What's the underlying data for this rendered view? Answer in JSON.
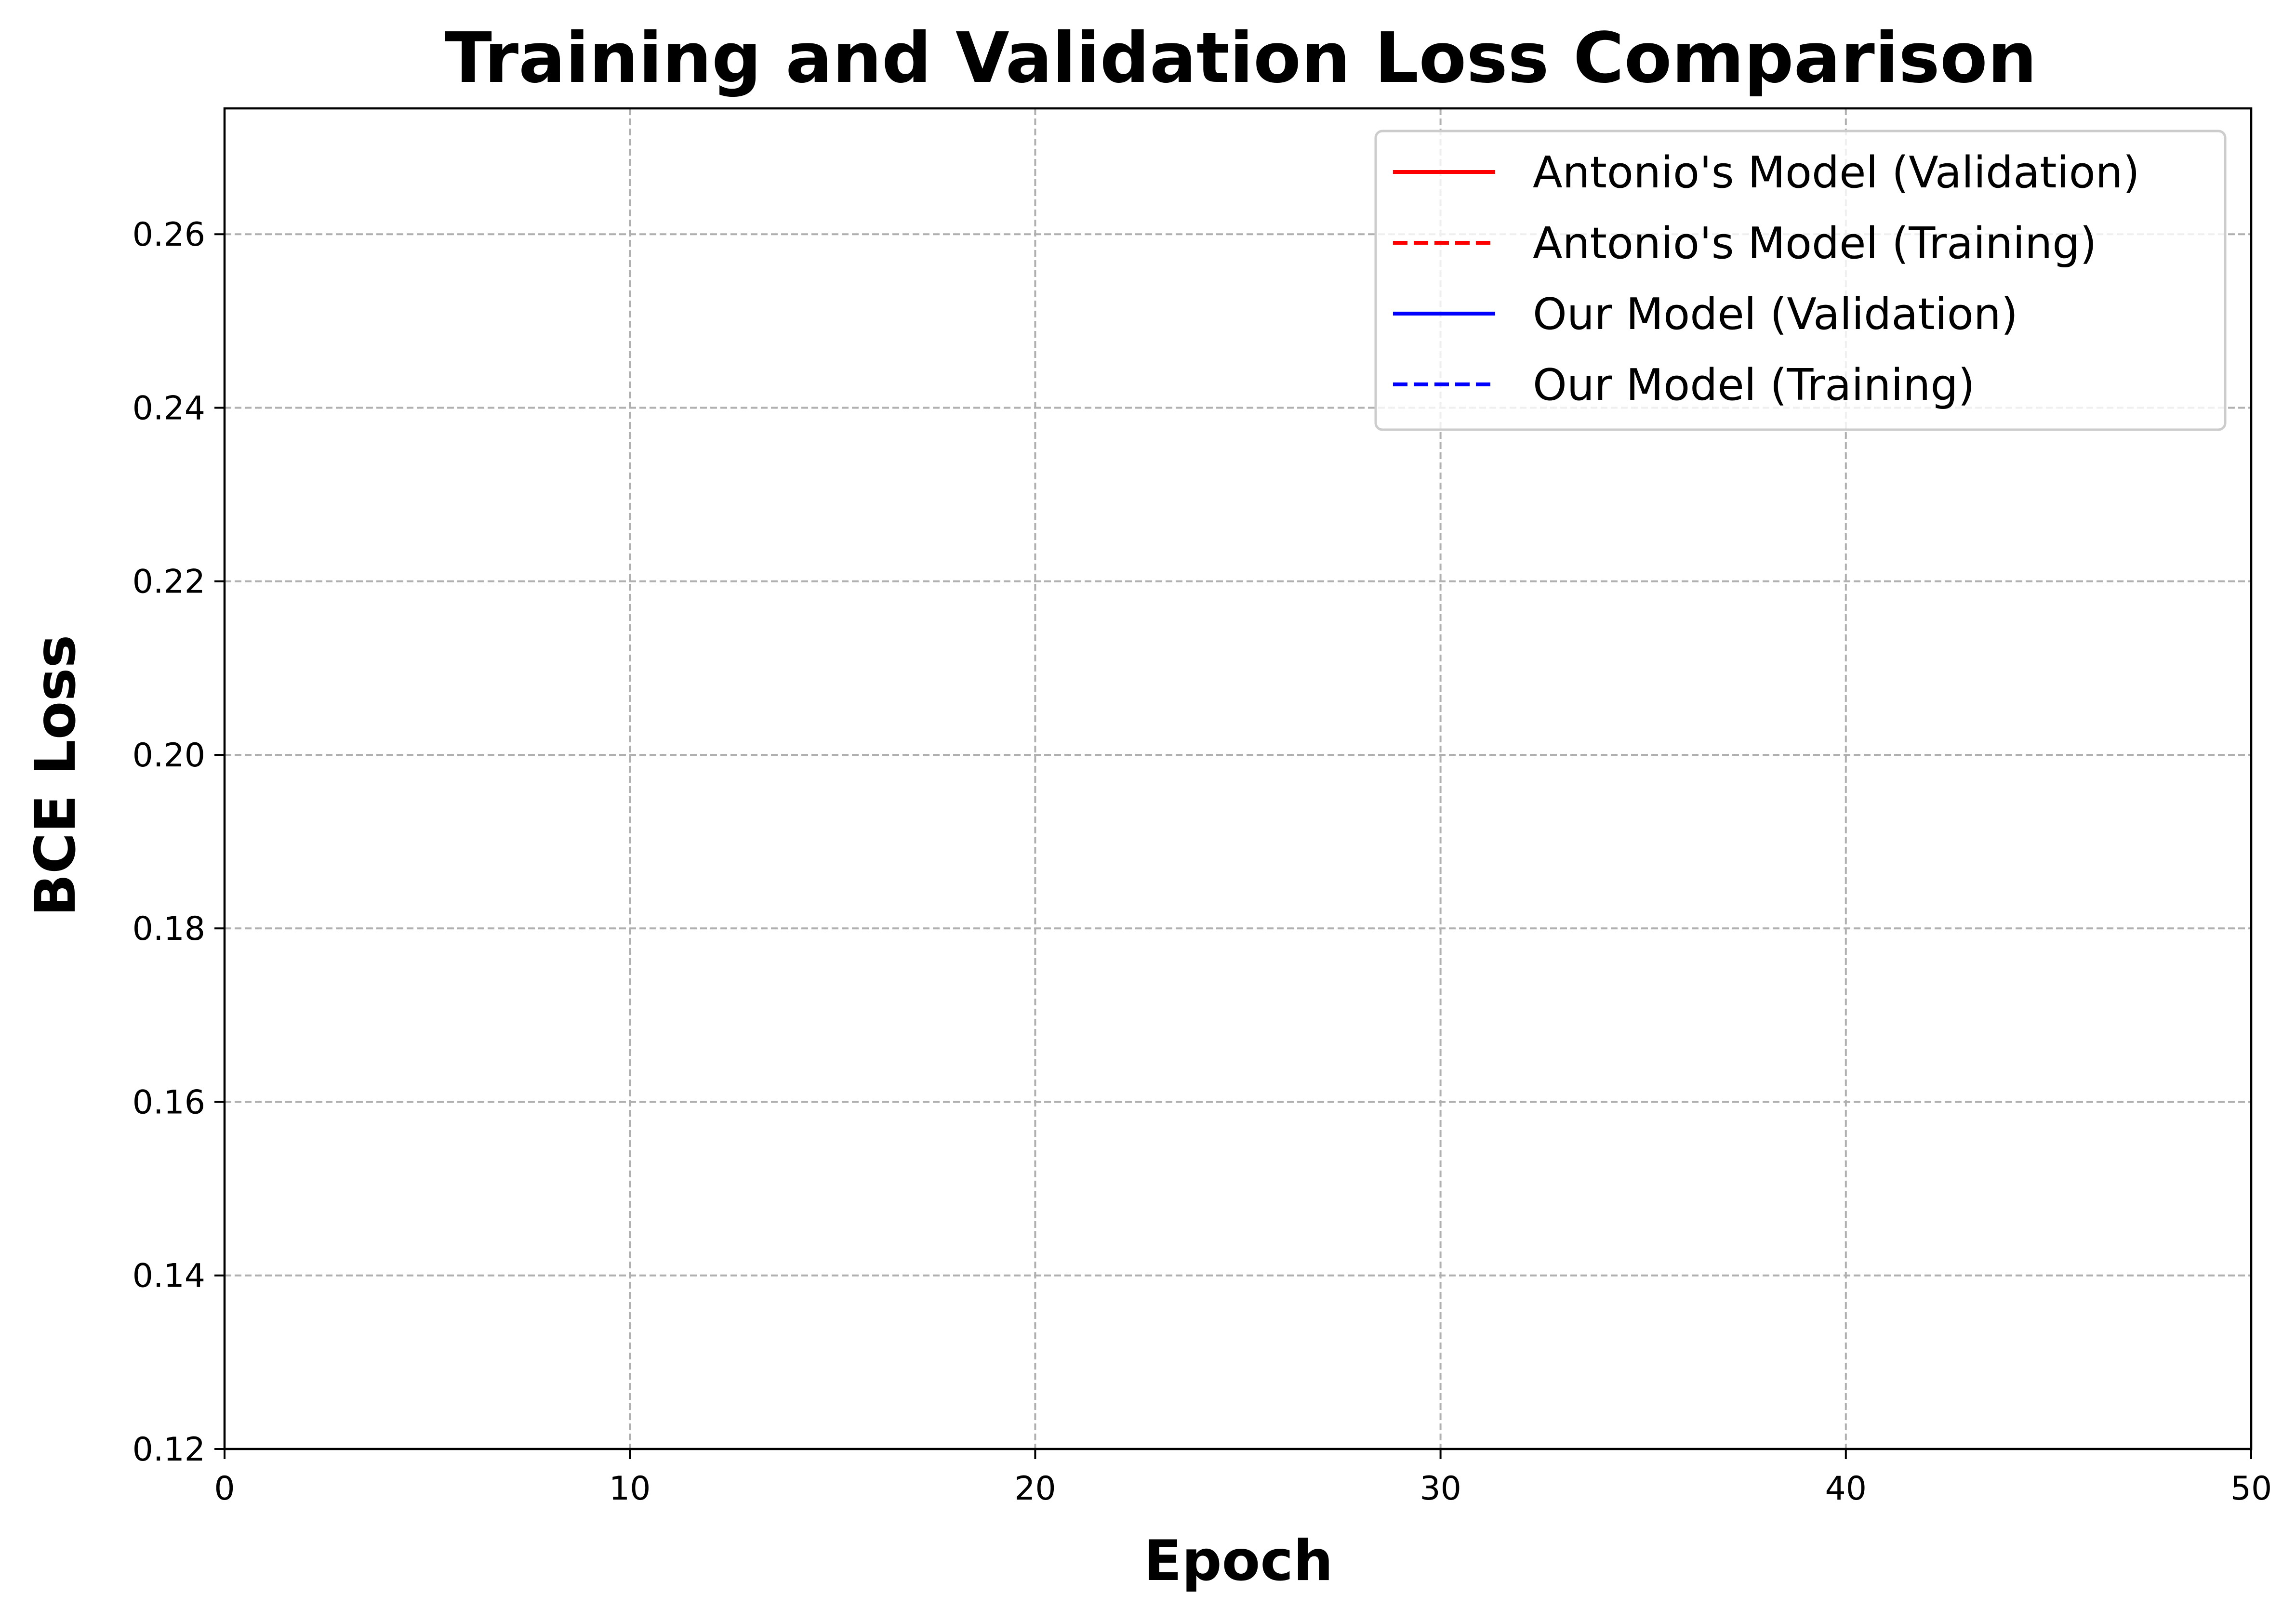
{
  "chart_data": {
    "type": "line",
    "title": "Training and Validation Loss Comparison",
    "xlabel": "Epoch",
    "ylabel": "BCE Loss",
    "xlim": [
      0,
      50
    ],
    "ylim": [
      0.12,
      0.2745
    ],
    "x_ticks": [
      0,
      10,
      20,
      30,
      40,
      50
    ],
    "x_tick_labels": [
      "0",
      "10",
      "20",
      "30",
      "40",
      "50"
    ],
    "y_ticks": [
      0.12,
      0.14,
      0.16,
      0.18,
      0.2,
      0.22,
      0.24,
      0.26
    ],
    "y_tick_labels": [
      "0.12",
      "0.14",
      "0.16",
      "0.18",
      "0.20",
      "0.22",
      "0.24",
      "0.26"
    ],
    "grid": true,
    "grid_style": "dashed",
    "legend_position": "top-right",
    "series": [
      {
        "name": "Antonio's Model (Validation)",
        "color": "#ff0000",
        "line_style": "solid",
        "x": [],
        "y": []
      },
      {
        "name": "Antonio's Model (Training)",
        "color": "#ff0000",
        "line_style": "dashed",
        "x": [],
        "y": []
      },
      {
        "name": "Our Model (Validation)",
        "color": "#0000ff",
        "line_style": "solid",
        "x": [],
        "y": []
      },
      {
        "name": "Our Model (Training)",
        "color": "#0000ff",
        "line_style": "dashed",
        "x": [],
        "y": []
      }
    ]
  }
}
